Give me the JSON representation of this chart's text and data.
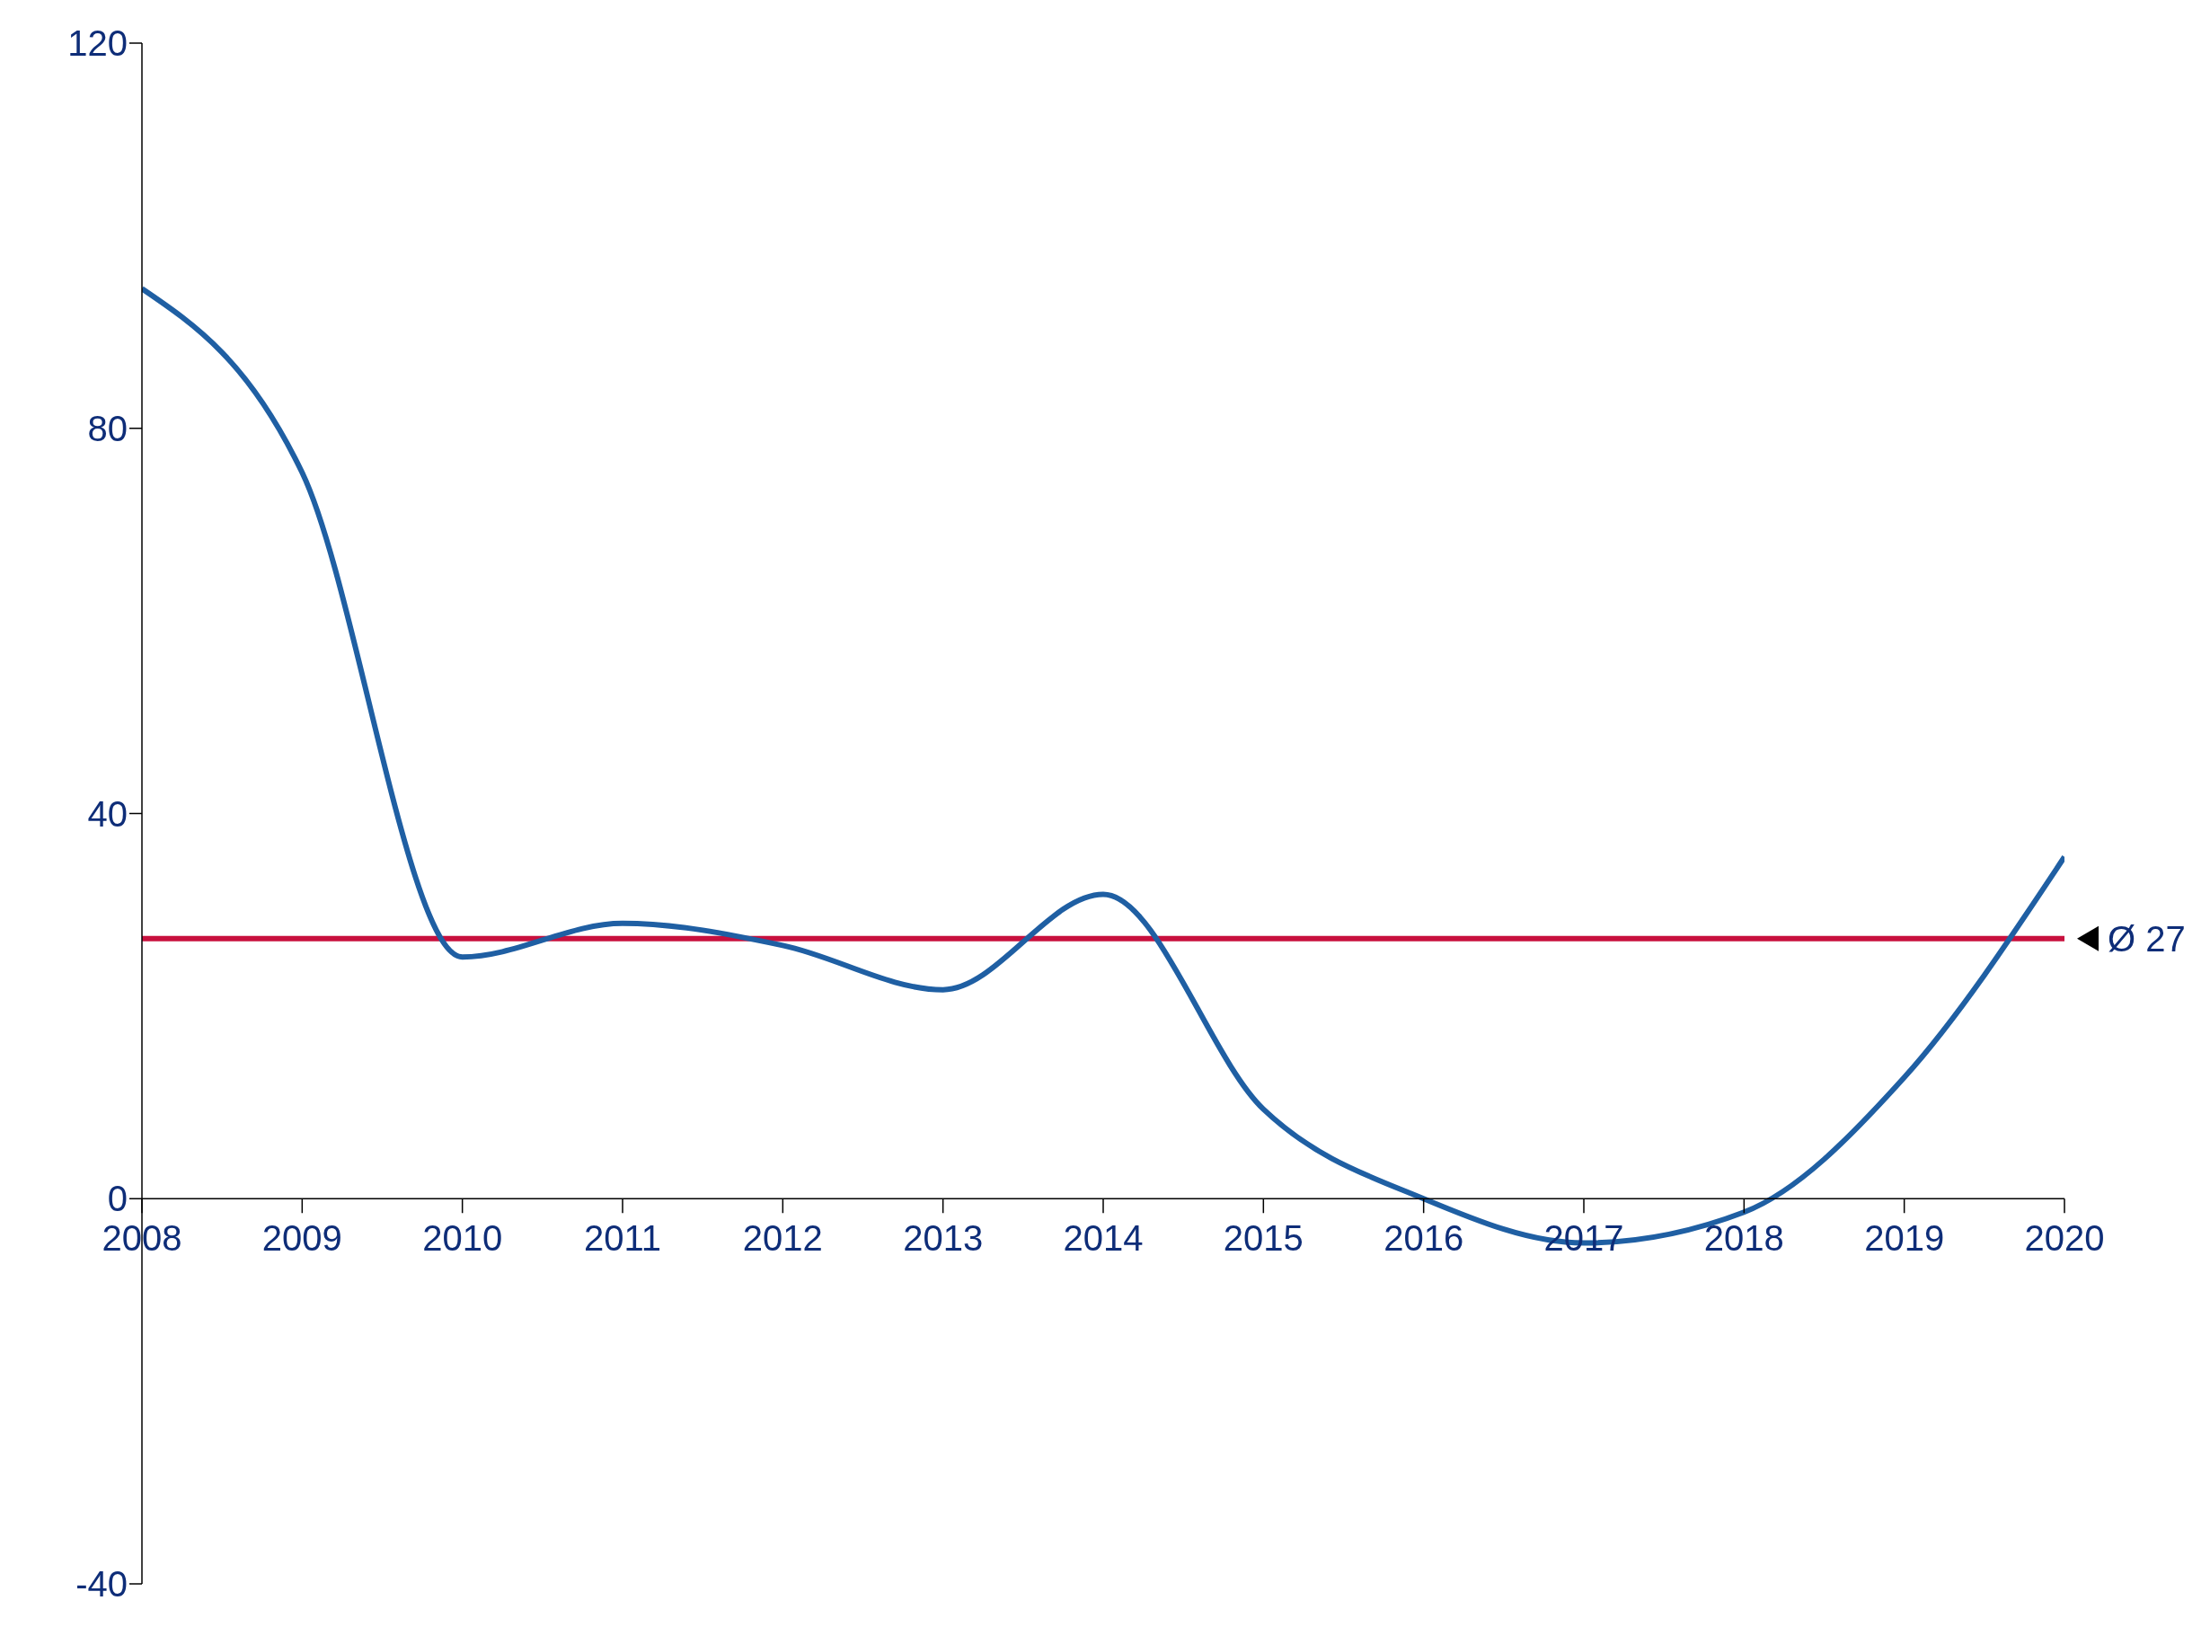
{
  "chart_data": {
    "type": "line",
    "x": [
      2008,
      2009,
      2010,
      2011,
      2012,
      2013,
      2014,
      2015,
      2016,
      2017,
      2018,
      2019,
      2020
    ],
    "series": [
      {
        "color": "#1f5fa3",
        "values": [
          94.5,
          75.4,
          25.1,
          28.6,
          26.3,
          21.7,
          31.6,
          9.3,
          0,
          -4.6,
          -1.4,
          12.6,
          35.5
        ]
      }
    ],
    "xlim": [
      2008,
      2020
    ],
    "xticks": [
      2008,
      2009,
      2010,
      2011,
      2012,
      2013,
      2014,
      2015,
      2016,
      2017,
      2018,
      2019,
      2020
    ],
    "ylim": [
      -40,
      120
    ],
    "yticks": [
      -40,
      0,
      40,
      80,
      120
    ],
    "ref_lines": [
      {
        "axis": "y",
        "value": 27,
        "label": "Ø 27",
        "color": "#c8103e"
      }
    ],
    "grid": false,
    "legend": false,
    "marker": "none",
    "line_style": "solid"
  }
}
